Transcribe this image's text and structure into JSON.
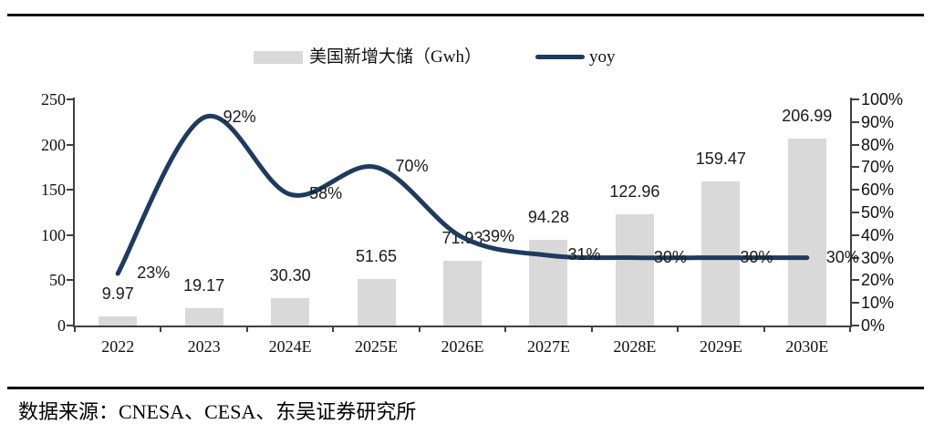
{
  "legend": {
    "bar_label": "美国新增大储（Gwh）",
    "line_label": "yoy"
  },
  "source_note": "数据来源：CNESA、CESA、东吴证券研究所",
  "colors": {
    "bar": "#d9d9d9",
    "line": "#1f3a5e",
    "axis": "#404040",
    "rule": "#111111"
  },
  "chart_data": {
    "type": "bar",
    "categories": [
      "2022",
      "2023",
      "2024E",
      "2025E",
      "2026E",
      "2027E",
      "2028E",
      "2029E",
      "2030E"
    ],
    "series": [
      {
        "name": "美国新增大储（Gwh）",
        "type": "bar",
        "axis": "left",
        "values": [
          9.97,
          19.17,
          30.3,
          51.65,
          71.93,
          94.28,
          122.96,
          159.47,
          206.99
        ],
        "labels": [
          "9.97",
          "19.17",
          "30.30",
          "51.65",
          "71.93",
          "94.28",
          "122.96",
          "159.47",
          "206.99"
        ]
      },
      {
        "name": "yoy",
        "type": "line",
        "axis": "right",
        "values": [
          23,
          92,
          58,
          70,
          39,
          31,
          30,
          30,
          30
        ],
        "labels": [
          "23%",
          "92%",
          "58%",
          "70%",
          "39%",
          "31%",
          "30%",
          "30%",
          "30%"
        ]
      }
    ],
    "left_axis": {
      "min": 0,
      "max": 250,
      "ticks": [
        "0",
        "50",
        "100",
        "150",
        "200",
        "250"
      ]
    },
    "right_axis": {
      "min": 0,
      "max": 100,
      "ticks": [
        "0%",
        "10%",
        "20%",
        "30%",
        "40%",
        "50%",
        "60%",
        "70%",
        "80%",
        "90%",
        "100%"
      ]
    },
    "grid": false,
    "legend_position": "top"
  }
}
